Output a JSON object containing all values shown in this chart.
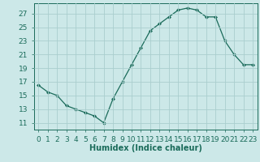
{
  "x": [
    0,
    1,
    2,
    3,
    4,
    5,
    6,
    7,
    8,
    9,
    10,
    11,
    12,
    13,
    14,
    15,
    16,
    17,
    18,
    19,
    20,
    21,
    22,
    23
  ],
  "y": [
    16.5,
    15.5,
    15.0,
    13.5,
    13.0,
    12.5,
    12.0,
    11.0,
    14.5,
    17.0,
    19.5,
    22.0,
    24.5,
    25.5,
    26.5,
    27.5,
    27.8,
    27.5,
    26.5,
    26.5,
    23.0,
    21.0,
    19.5,
    19.5
  ],
  "line_color": "#1a6b5a",
  "marker": "D",
  "marker_size": 2.0,
  "bg_color": "#cce8e8",
  "grid_color": "#aacece",
  "axis_color": "#1a6b5a",
  "xlabel": "Humidex (Indice chaleur)",
  "xlim": [
    -0.5,
    23.5
  ],
  "ylim": [
    10.0,
    28.5
  ],
  "yticks": [
    11,
    13,
    15,
    17,
    19,
    21,
    23,
    25,
    27
  ],
  "xtick_labels": [
    "0",
    "1",
    "2",
    "3",
    "4",
    "5",
    "6",
    "7",
    "8",
    "9",
    "10",
    "11",
    "12",
    "13",
    "14",
    "15",
    "16",
    "17",
    "18",
    "19",
    "20",
    "21",
    "22",
    "23"
  ],
  "xlabel_fontsize": 7,
  "tick_fontsize": 6.5
}
